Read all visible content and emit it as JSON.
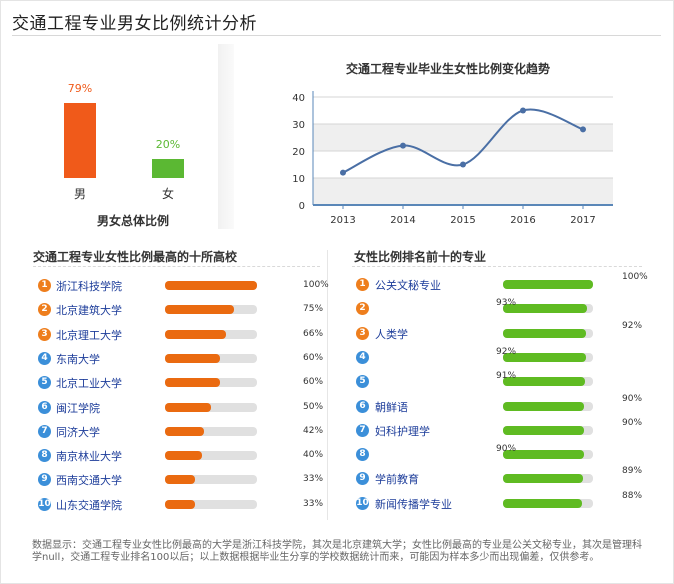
{
  "page": {
    "title": "交通工程专业男女比例统计分析"
  },
  "overall": {
    "caption": "男女总体比例",
    "items": [
      {
        "label": "男",
        "percent_text": "79%",
        "value": 79,
        "color": "#f05a1a"
      },
      {
        "label": "女",
        "percent_text": "20%",
        "value": 20,
        "color": "#5bb833"
      }
    ]
  },
  "trend": {
    "title": "交通工程专业毕业生女性比例变化趋势",
    "x": [
      "2013",
      "2014",
      "2015",
      "2016",
      "2017"
    ],
    "y_ticks": [
      "0",
      "10",
      "20",
      "30",
      "40"
    ],
    "ylim": [
      0,
      40
    ]
  },
  "schools": {
    "title": "交通工程专业女性比例最高的十所高校",
    "items": [
      {
        "rank": "1",
        "name": "浙江科技学院",
        "value": 100,
        "percent_text": "100%"
      },
      {
        "rank": "2",
        "name": "北京建筑大学",
        "value": 75,
        "percent_text": "75%"
      },
      {
        "rank": "3",
        "name": "北京理工大学",
        "value": 66,
        "percent_text": "66%"
      },
      {
        "rank": "4",
        "name": "东南大学",
        "value": 60,
        "percent_text": "60%"
      },
      {
        "rank": "5",
        "name": "北京工业大学",
        "value": 60,
        "percent_text": "60%"
      },
      {
        "rank": "6",
        "name": "闽江学院",
        "value": 50,
        "percent_text": "50%"
      },
      {
        "rank": "7",
        "name": "同济大学",
        "value": 42,
        "percent_text": "42%"
      },
      {
        "rank": "8",
        "name": "南京林业大学",
        "value": 40,
        "percent_text": "40%"
      },
      {
        "rank": "9",
        "name": "西南交通大学",
        "value": 33,
        "percent_text": "33%"
      },
      {
        "rank": "10",
        "name": "山东交通学院",
        "value": 33,
        "percent_text": "33%"
      }
    ]
  },
  "majors": {
    "title": "女性比例排名前十的专业",
    "items": [
      {
        "rank": "1",
        "name": "公关文秘专业",
        "value": 100,
        "percent_text": "100%"
      },
      {
        "rank": "2",
        "name": "",
        "value": 93,
        "percent_text": "93%"
      },
      {
        "rank": "3",
        "name": "人类学",
        "value": 92,
        "percent_text": "92%"
      },
      {
        "rank": "4",
        "name": "",
        "value": 92,
        "percent_text": "92%"
      },
      {
        "rank": "5",
        "name": "",
        "value": 91,
        "percent_text": "91%"
      },
      {
        "rank": "6",
        "name": "朝鲜语",
        "value": 90,
        "percent_text": "90%"
      },
      {
        "rank": "7",
        "name": "妇科护理学",
        "value": 90,
        "percent_text": "90%"
      },
      {
        "rank": "8",
        "name": "",
        "value": 90,
        "percent_text": "90%"
      },
      {
        "rank": "9",
        "name": "学前教育",
        "value": 89,
        "percent_text": "89%"
      },
      {
        "rank": "10",
        "name": "新闻传播学专业",
        "value": 88,
        "percent_text": "88%"
      }
    ]
  },
  "footer": {
    "text": "数据显示：交通工程专业女性比例最高的大学是浙江科技学院，其次是北京建筑大学；女性比例最高的专业是公关文秘专业，其次是管理科学null，交通工程专业排名100以后；以上数据根据毕业生分享的学校数据统计而来，可能因为样本多少而出现偏差，仅供参考。"
  },
  "chart_data": {
    "type": "line",
    "title": "交通工程专业毕业生女性比例变化趋势",
    "x": [
      "2013",
      "2014",
      "2015",
      "2016",
      "2017"
    ],
    "values": [
      12,
      22,
      15,
      35,
      28
    ],
    "ylim": [
      0,
      40
    ],
    "grid": true,
    "color": "#4a6fa5"
  }
}
